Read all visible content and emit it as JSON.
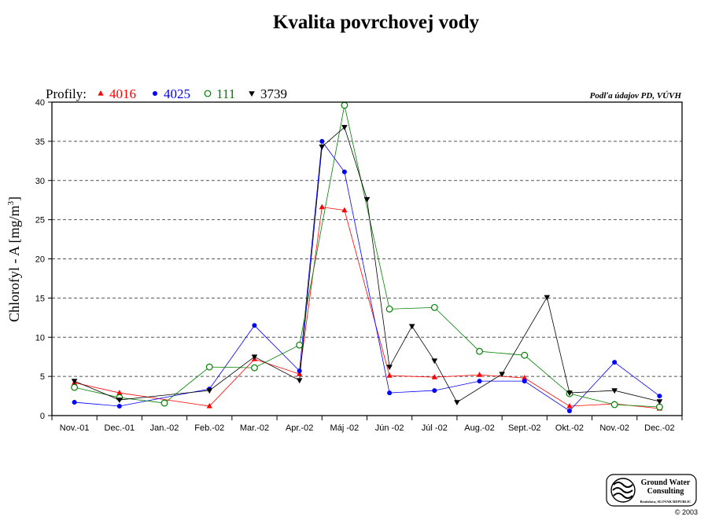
{
  "chart_data": {
    "type": "line",
    "title": "Kvalita povrchovej vody",
    "legend_prefix": "Profily:",
    "source": "Podľa údajov PD, VÚVH",
    "ylabel_main": "Chlorofyl - A [mg/m",
    "ylabel_sup": "3",
    "ylabel_close": "]",
    "ylim": [
      0,
      40
    ],
    "yticks": [
      0,
      5,
      10,
      15,
      20,
      25,
      30,
      35,
      40
    ],
    "grid": "horizontal-dashed",
    "legend_position": "top-left",
    "categories": [
      "Nov.-01",
      "Dec.-01",
      "Jan.-02",
      "Feb.-02",
      "Mar.-02",
      "Apr.-02",
      "Máj -02",
      "Jún -02",
      "Júl -02",
      "Aug.-02",
      "Sept.-02",
      "Okt.-02",
      "Nov.-02",
      "Dec.-02"
    ],
    "series": [
      {
        "name": "4016",
        "color": "#ff0000",
        "marker": "triangle-up",
        "points": [
          [
            0,
            4.2
          ],
          [
            1,
            2.9
          ],
          [
            3,
            1.2
          ],
          [
            4,
            7.2
          ],
          [
            5,
            5.3
          ],
          [
            5.5,
            26.6
          ],
          [
            6,
            26.2
          ],
          [
            7,
            5.1
          ],
          [
            8,
            4.9
          ],
          [
            9,
            5.2
          ],
          [
            10,
            4.8
          ],
          [
            11,
            1.2
          ],
          [
            12,
            1.5
          ],
          [
            13,
            0.9
          ]
        ]
      },
      {
        "name": "4025",
        "color": "#0000ff",
        "marker": "circle-filled",
        "points": [
          [
            0,
            1.7
          ],
          [
            1,
            1.2
          ],
          [
            3,
            3.4
          ],
          [
            4,
            11.5
          ],
          [
            5,
            5.7
          ],
          [
            5.5,
            35.0
          ],
          [
            6,
            31.1
          ],
          [
            7,
            2.9
          ],
          [
            8,
            3.2
          ],
          [
            9,
            4.4
          ],
          [
            10,
            4.4
          ],
          [
            11,
            0.6
          ],
          [
            12,
            6.8
          ],
          [
            13,
            2.5
          ]
        ]
      },
      {
        "name": "111",
        "color": "#008000",
        "marker": "circle-open",
        "points": [
          [
            0,
            3.6
          ],
          [
            1,
            2.3
          ],
          [
            2,
            1.6
          ],
          [
            3,
            6.2
          ],
          [
            4,
            6.1
          ],
          [
            5,
            9.0
          ],
          [
            6,
            39.6
          ],
          [
            7,
            13.6
          ],
          [
            8,
            13.8
          ],
          [
            9,
            8.2
          ],
          [
            10,
            7.7
          ],
          [
            11,
            2.8
          ],
          [
            12,
            1.4
          ],
          [
            13,
            1.1
          ]
        ]
      },
      {
        "name": "3739",
        "color": "#000000",
        "marker": "triangle-down",
        "points": [
          [
            0,
            4.4
          ],
          [
            1,
            2.0
          ],
          [
            3,
            3.2
          ],
          [
            4,
            7.5
          ],
          [
            5,
            4.5
          ],
          [
            5.5,
            34.3
          ],
          [
            6,
            36.8
          ],
          [
            6.5,
            27.6
          ],
          [
            7,
            6.2
          ],
          [
            7.5,
            11.4
          ],
          [
            8,
            7.0
          ],
          [
            8.5,
            1.7
          ],
          [
            9.5,
            5.3
          ],
          [
            10.5,
            15.1
          ],
          [
            11,
            2.9
          ],
          [
            12,
            3.2
          ],
          [
            13,
            1.8
          ]
        ]
      }
    ]
  },
  "logo": {
    "line1": "Ground Water",
    "line2": "Consulting",
    "line3": "Bratislava, SLOVAK REPUBLIC",
    "copyright": "© 2003"
  }
}
